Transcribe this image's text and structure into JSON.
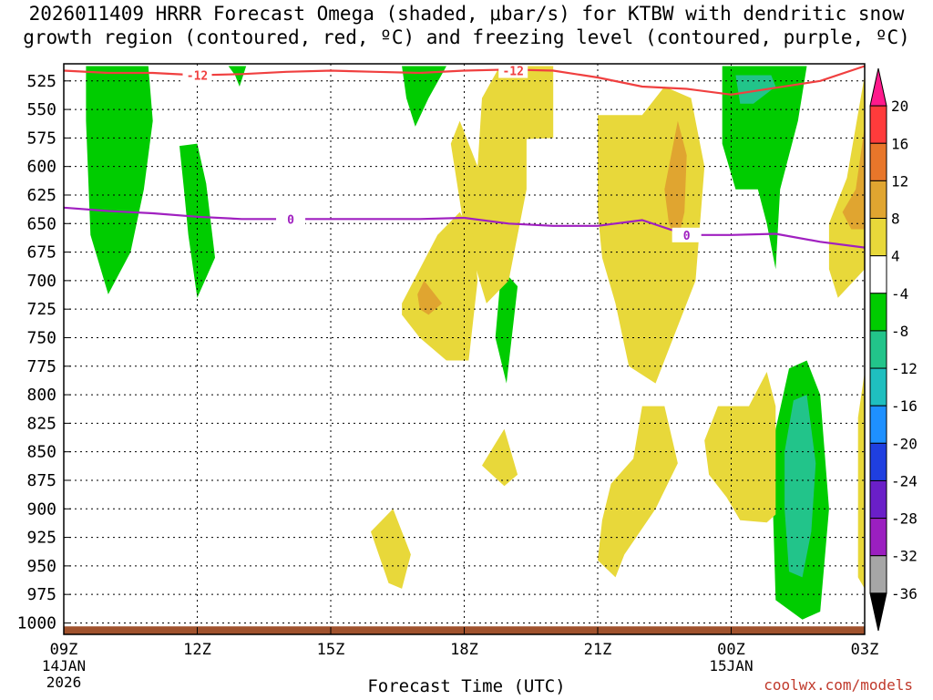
{
  "chart_data": {
    "type": "heatmap",
    "title_line1": "2026011409 HRRR Forecast Omega (shaded, μbar/s) for KTBW with dendritic snow",
    "title_line2": "growth region (contoured, red, ºC) and freezing level (contoured, purple, ºC)",
    "xlabel": "Forecast Time (UTC)",
    "credit": "coolwx.com/models",
    "y_ticks": [
      525,
      550,
      575,
      600,
      625,
      650,
      675,
      700,
      725,
      750,
      775,
      800,
      825,
      850,
      875,
      900,
      925,
      950,
      975,
      1000
    ],
    "y_range_hpa": [
      510,
      1010
    ],
    "x_range_hours": [
      0,
      18
    ],
    "x_ticks": [
      {
        "hour": 0,
        "label": "09Z",
        "sub1": "14JAN",
        "sub2": "2026"
      },
      {
        "hour": 3,
        "label": "12Z",
        "sub1": "",
        "sub2": ""
      },
      {
        "hour": 6,
        "label": "15Z",
        "sub1": "",
        "sub2": ""
      },
      {
        "hour": 9,
        "label": "18Z",
        "sub1": "",
        "sub2": ""
      },
      {
        "hour": 12,
        "label": "21Z",
        "sub1": "",
        "sub2": ""
      },
      {
        "hour": 15,
        "label": "00Z",
        "sub1": "15JAN",
        "sub2": ""
      },
      {
        "hour": 18,
        "label": "03Z",
        "sub1": "",
        "sub2": ""
      }
    ],
    "colorbar": {
      "labels": [
        "20",
        "16",
        "12",
        "8",
        "4",
        "-4",
        "-8",
        "-12",
        "-16",
        "-20",
        "-24",
        "-28",
        "-32",
        "-36"
      ],
      "colors": [
        "#ff1a8c",
        "#ff3b3b",
        "#e8762a",
        "#e0a530",
        "#e8d83a",
        "#ffffff",
        "#00cc00",
        "#22c48a",
        "#1fbfbf",
        "#1e90ff",
        "#1f3fe0",
        "#6a1fc8",
        "#9b1fc0",
        "#a6a6a6",
        "#000000"
      ]
    },
    "contours": [
      {
        "name": "dgz-minus12",
        "value_label": "-12",
        "color": "#f04040",
        "x": [
          0,
          1,
          2,
          3,
          4,
          5,
          6,
          7,
          8,
          9,
          10,
          11,
          12,
          13,
          14,
          15,
          16,
          17,
          18
        ],
        "y": [
          516,
          518,
          518,
          520,
          519,
          517,
          516,
          517,
          518,
          516,
          515,
          516,
          522,
          530,
          532,
          537,
          531,
          525,
          512
        ]
      },
      {
        "name": "freezing-level-0",
        "value_label": "0",
        "color": "#a020c0",
        "x": [
          0,
          1,
          2,
          3,
          4,
          5,
          6,
          7,
          8,
          9,
          10,
          11,
          12,
          13,
          14,
          15,
          16,
          17,
          18
        ],
        "y": [
          636,
          639,
          641,
          644,
          646,
          646,
          646,
          646,
          646,
          645,
          650,
          652,
          652,
          647,
          660,
          660,
          659,
          666,
          671
        ]
      }
    ],
    "shaded_regions": [
      {
        "class": "neg4",
        "pts": [
          [
            0.5,
            512
          ],
          [
            1.9,
            512
          ],
          [
            2.0,
            560
          ],
          [
            1.8,
            620
          ],
          [
            1.5,
            675
          ],
          [
            1.0,
            712
          ],
          [
            0.6,
            660
          ],
          [
            0.5,
            560
          ]
        ]
      },
      {
        "class": "neg4",
        "pts": [
          [
            2.6,
            582
          ],
          [
            3.0,
            580
          ],
          [
            3.2,
            615
          ],
          [
            3.4,
            680
          ],
          [
            3.0,
            715
          ],
          [
            2.8,
            660
          ],
          [
            2.7,
            620
          ]
        ]
      },
      {
        "class": "neg4",
        "pts": [
          [
            3.7,
            512
          ],
          [
            4.1,
            512
          ],
          [
            3.95,
            530
          ],
          [
            3.85,
            520
          ]
        ]
      },
      {
        "class": "neg4",
        "pts": [
          [
            7.6,
            512
          ],
          [
            8.6,
            512
          ],
          [
            8.2,
            540
          ],
          [
            7.9,
            565
          ],
          [
            7.7,
            540
          ]
        ]
      },
      {
        "class": "neg4",
        "pts": [
          [
            9.8,
            688
          ],
          [
            10.2,
            705
          ],
          [
            9.95,
            790
          ],
          [
            9.7,
            750
          ],
          [
            9.8,
            705
          ]
        ]
      },
      {
        "class": "neg4",
        "pts": [
          [
            14.8,
            512
          ],
          [
            16.7,
            512
          ],
          [
            16.5,
            560
          ],
          [
            16.1,
            620
          ],
          [
            16.0,
            690
          ],
          [
            15.8,
            650
          ],
          [
            15.6,
            620
          ],
          [
            15.1,
            620
          ],
          [
            14.8,
            580
          ]
        ]
      },
      {
        "class": "neg8",
        "pts": [
          [
            15.1,
            520
          ],
          [
            15.9,
            520
          ],
          [
            16.0,
            530
          ],
          [
            15.5,
            545
          ],
          [
            15.2,
            545
          ]
        ]
      },
      {
        "class": "neg4",
        "pts": [
          [
            15.9,
            848
          ],
          [
            16.3,
            777
          ],
          [
            16.7,
            770
          ],
          [
            17.0,
            800
          ],
          [
            17.2,
            900
          ],
          [
            17.0,
            990
          ],
          [
            16.6,
            997
          ],
          [
            16.0,
            980
          ]
        ]
      },
      {
        "class": "neg8",
        "pts": [
          [
            16.2,
            850
          ],
          [
            16.4,
            805
          ],
          [
            16.7,
            800
          ],
          [
            16.9,
            860
          ],
          [
            16.8,
            920
          ],
          [
            16.6,
            960
          ],
          [
            16.3,
            955
          ],
          [
            16.2,
            900
          ]
        ]
      },
      {
        "class": "pos4",
        "pts": [
          [
            9.3,
            600
          ],
          [
            9.4,
            540
          ],
          [
            9.8,
            512
          ],
          [
            11.0,
            512
          ],
          [
            11.0,
            575
          ],
          [
            10.4,
            576
          ],
          [
            10.4,
            620
          ],
          [
            10.2,
            660
          ],
          [
            10.0,
            700
          ],
          [
            9.5,
            720
          ],
          [
            9.0,
            655
          ],
          [
            8.7,
            580
          ],
          [
            8.9,
            560
          ]
        ]
      },
      {
        "class": "pos4",
        "pts": [
          [
            7.6,
            720
          ],
          [
            8.4,
            660
          ],
          [
            8.9,
            640
          ],
          [
            9.2,
            660
          ],
          [
            9.3,
            700
          ],
          [
            9.1,
            770
          ],
          [
            8.6,
            770
          ],
          [
            8.0,
            750
          ],
          [
            7.6,
            730
          ]
        ]
      },
      {
        "class": "pos8",
        "pts": [
          [
            7.95,
            712
          ],
          [
            8.1,
            700
          ],
          [
            8.5,
            720
          ],
          [
            8.2,
            730
          ],
          [
            8.0,
            725
          ]
        ]
      },
      {
        "class": "pos4",
        "pts": [
          [
            12.0,
            640
          ],
          [
            12.0,
            555
          ],
          [
            13.0,
            555
          ],
          [
            13.5,
            530
          ],
          [
            14.1,
            540
          ],
          [
            14.4,
            600
          ],
          [
            14.2,
            700
          ],
          [
            13.6,
            760
          ],
          [
            13.3,
            790
          ],
          [
            12.7,
            775
          ],
          [
            12.4,
            720
          ],
          [
            12.1,
            680
          ]
        ]
      },
      {
        "class": "pos8",
        "pts": [
          [
            13.5,
            620
          ],
          [
            13.8,
            560
          ],
          [
            14.0,
            590
          ],
          [
            13.95,
            640
          ],
          [
            13.8,
            665
          ],
          [
            13.6,
            650
          ]
        ]
      },
      {
        "class": "pos4",
        "pts": [
          [
            17.2,
            650
          ],
          [
            17.6,
            610
          ],
          [
            18.0,
            520
          ],
          [
            18.0,
            690
          ],
          [
            17.4,
            715
          ],
          [
            17.2,
            690
          ]
        ]
      },
      {
        "class": "pos8",
        "pts": [
          [
            17.5,
            640
          ],
          [
            17.8,
            620
          ],
          [
            18.0,
            565
          ],
          [
            18.0,
            655
          ],
          [
            17.7,
            655
          ]
        ]
      },
      {
        "class": "pos4",
        "pts": [
          [
            12.3,
            878
          ],
          [
            12.8,
            856
          ],
          [
            13.0,
            810
          ],
          [
            13.5,
            810
          ],
          [
            13.8,
            860
          ],
          [
            13.3,
            900
          ],
          [
            12.6,
            940
          ],
          [
            12.4,
            960
          ],
          [
            12.0,
            945
          ],
          [
            12.1,
            910
          ]
        ]
      },
      {
        "class": "pos4",
        "pts": [
          [
            14.4,
            840
          ],
          [
            14.7,
            810
          ],
          [
            15.4,
            810
          ],
          [
            15.8,
            780
          ],
          [
            16.0,
            810
          ],
          [
            16.0,
            905
          ],
          [
            15.8,
            912
          ],
          [
            15.2,
            910
          ],
          [
            14.9,
            890
          ],
          [
            14.5,
            870
          ]
        ]
      },
      {
        "class": "pos4",
        "pts": [
          [
            9.4,
            862
          ],
          [
            9.9,
            830
          ],
          [
            10.2,
            870
          ],
          [
            9.9,
            880
          ]
        ]
      },
      {
        "class": "pos4",
        "pts": [
          [
            6.9,
            920
          ],
          [
            7.4,
            900
          ],
          [
            7.8,
            940
          ],
          [
            7.6,
            970
          ],
          [
            7.3,
            965
          ]
        ]
      },
      {
        "class": "pos4",
        "pts": [
          [
            17.85,
            820
          ],
          [
            18.0,
            780
          ],
          [
            18.0,
            970
          ],
          [
            17.85,
            960
          ]
        ]
      }
    ],
    "terrain_color": "#a0522d"
  }
}
